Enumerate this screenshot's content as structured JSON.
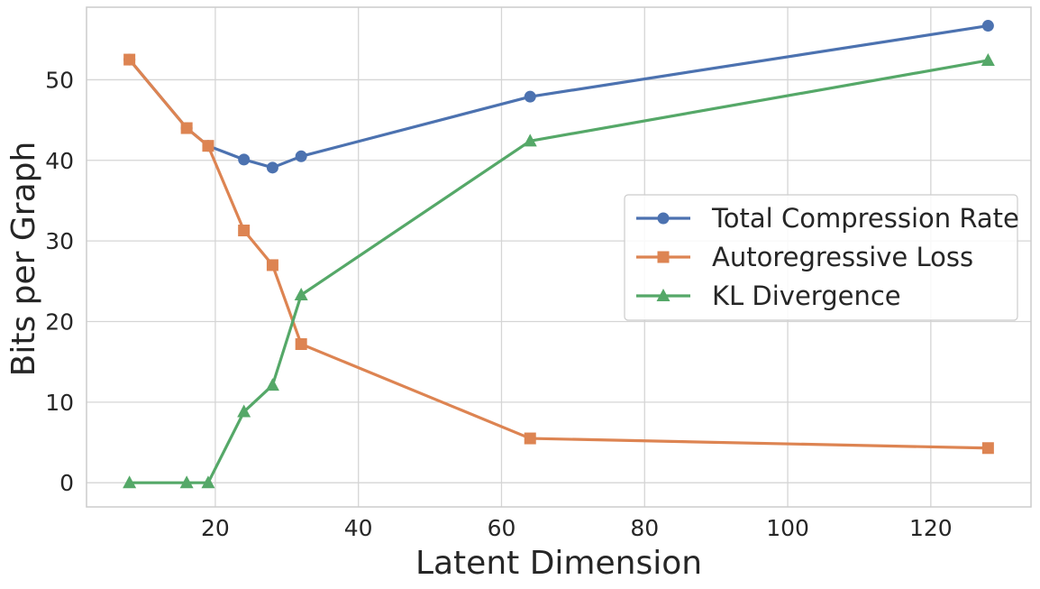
{
  "chart_data": {
    "type": "line",
    "title": "",
    "xlabel": "Latent Dimension",
    "ylabel": "Bits per Graph",
    "xlim": [
      2,
      134
    ],
    "ylim": [
      -3,
      59
    ],
    "xticks": [
      20,
      40,
      60,
      80,
      100,
      120
    ],
    "yticks": [
      0,
      10,
      20,
      30,
      40,
      50
    ],
    "grid": true,
    "legend_position": "center-right",
    "x": [
      8,
      16,
      19,
      24,
      28,
      32,
      64,
      128
    ],
    "series": [
      {
        "name": "Total Compression Rate",
        "color": "#4c72b0",
        "marker": "circle",
        "values": [
          52.5,
          44.0,
          41.8,
          40.1,
          39.1,
          40.5,
          47.9,
          56.7
        ]
      },
      {
        "name": "Autoregressive Loss",
        "color": "#dd8452",
        "marker": "square",
        "values": [
          52.5,
          44.0,
          41.8,
          31.3,
          27.0,
          17.2,
          5.5,
          4.3
        ]
      },
      {
        "name": "KL Divergence",
        "color": "#55a868",
        "marker": "triangle",
        "values": [
          0.0,
          0.0,
          0.0,
          8.8,
          12.1,
          23.3,
          42.4,
          52.4
        ]
      }
    ]
  }
}
